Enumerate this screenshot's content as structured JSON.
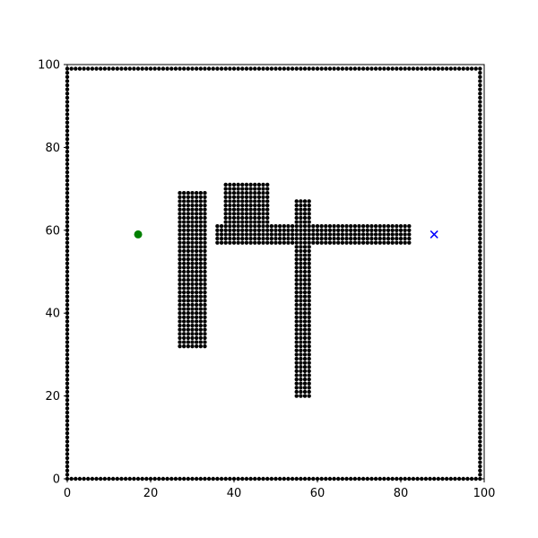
{
  "chart_data": {
    "type": "scatter",
    "title": "",
    "xlabel": "",
    "ylabel": "",
    "xlim": [
      0,
      100
    ],
    "ylim": [
      0,
      100
    ],
    "grid": false,
    "x_ticks": [
      0,
      20,
      40,
      60,
      80,
      100
    ],
    "y_ticks": [
      0,
      20,
      40,
      60,
      80,
      100
    ],
    "x_tick_labels": [
      "0",
      "20",
      "40",
      "60",
      "80",
      "100"
    ],
    "y_tick_labels": [
      "0",
      "20",
      "40",
      "60",
      "80",
      "100"
    ],
    "obstacle_color": "#000000",
    "start_color": "#008000",
    "goal_color": "#0000ff",
    "boundary": {
      "xmin": 0,
      "xmax": 99,
      "ymin": 0,
      "ymax": 99,
      "spacing": 1
    },
    "obstacle_blocks": [
      {
        "x0": 27,
        "x1": 33,
        "y0": 32,
        "y1": 69
      },
      {
        "x0": 38,
        "x1": 48,
        "y0": 57,
        "y1": 71
      },
      {
        "x0": 36,
        "x1": 82,
        "y0": 57,
        "y1": 61
      },
      {
        "x0": 55,
        "x1": 58,
        "y0": 20,
        "y1": 67
      }
    ],
    "start": {
      "x": 17,
      "y": 59
    },
    "goal": {
      "x": 88,
      "y": 59
    }
  }
}
